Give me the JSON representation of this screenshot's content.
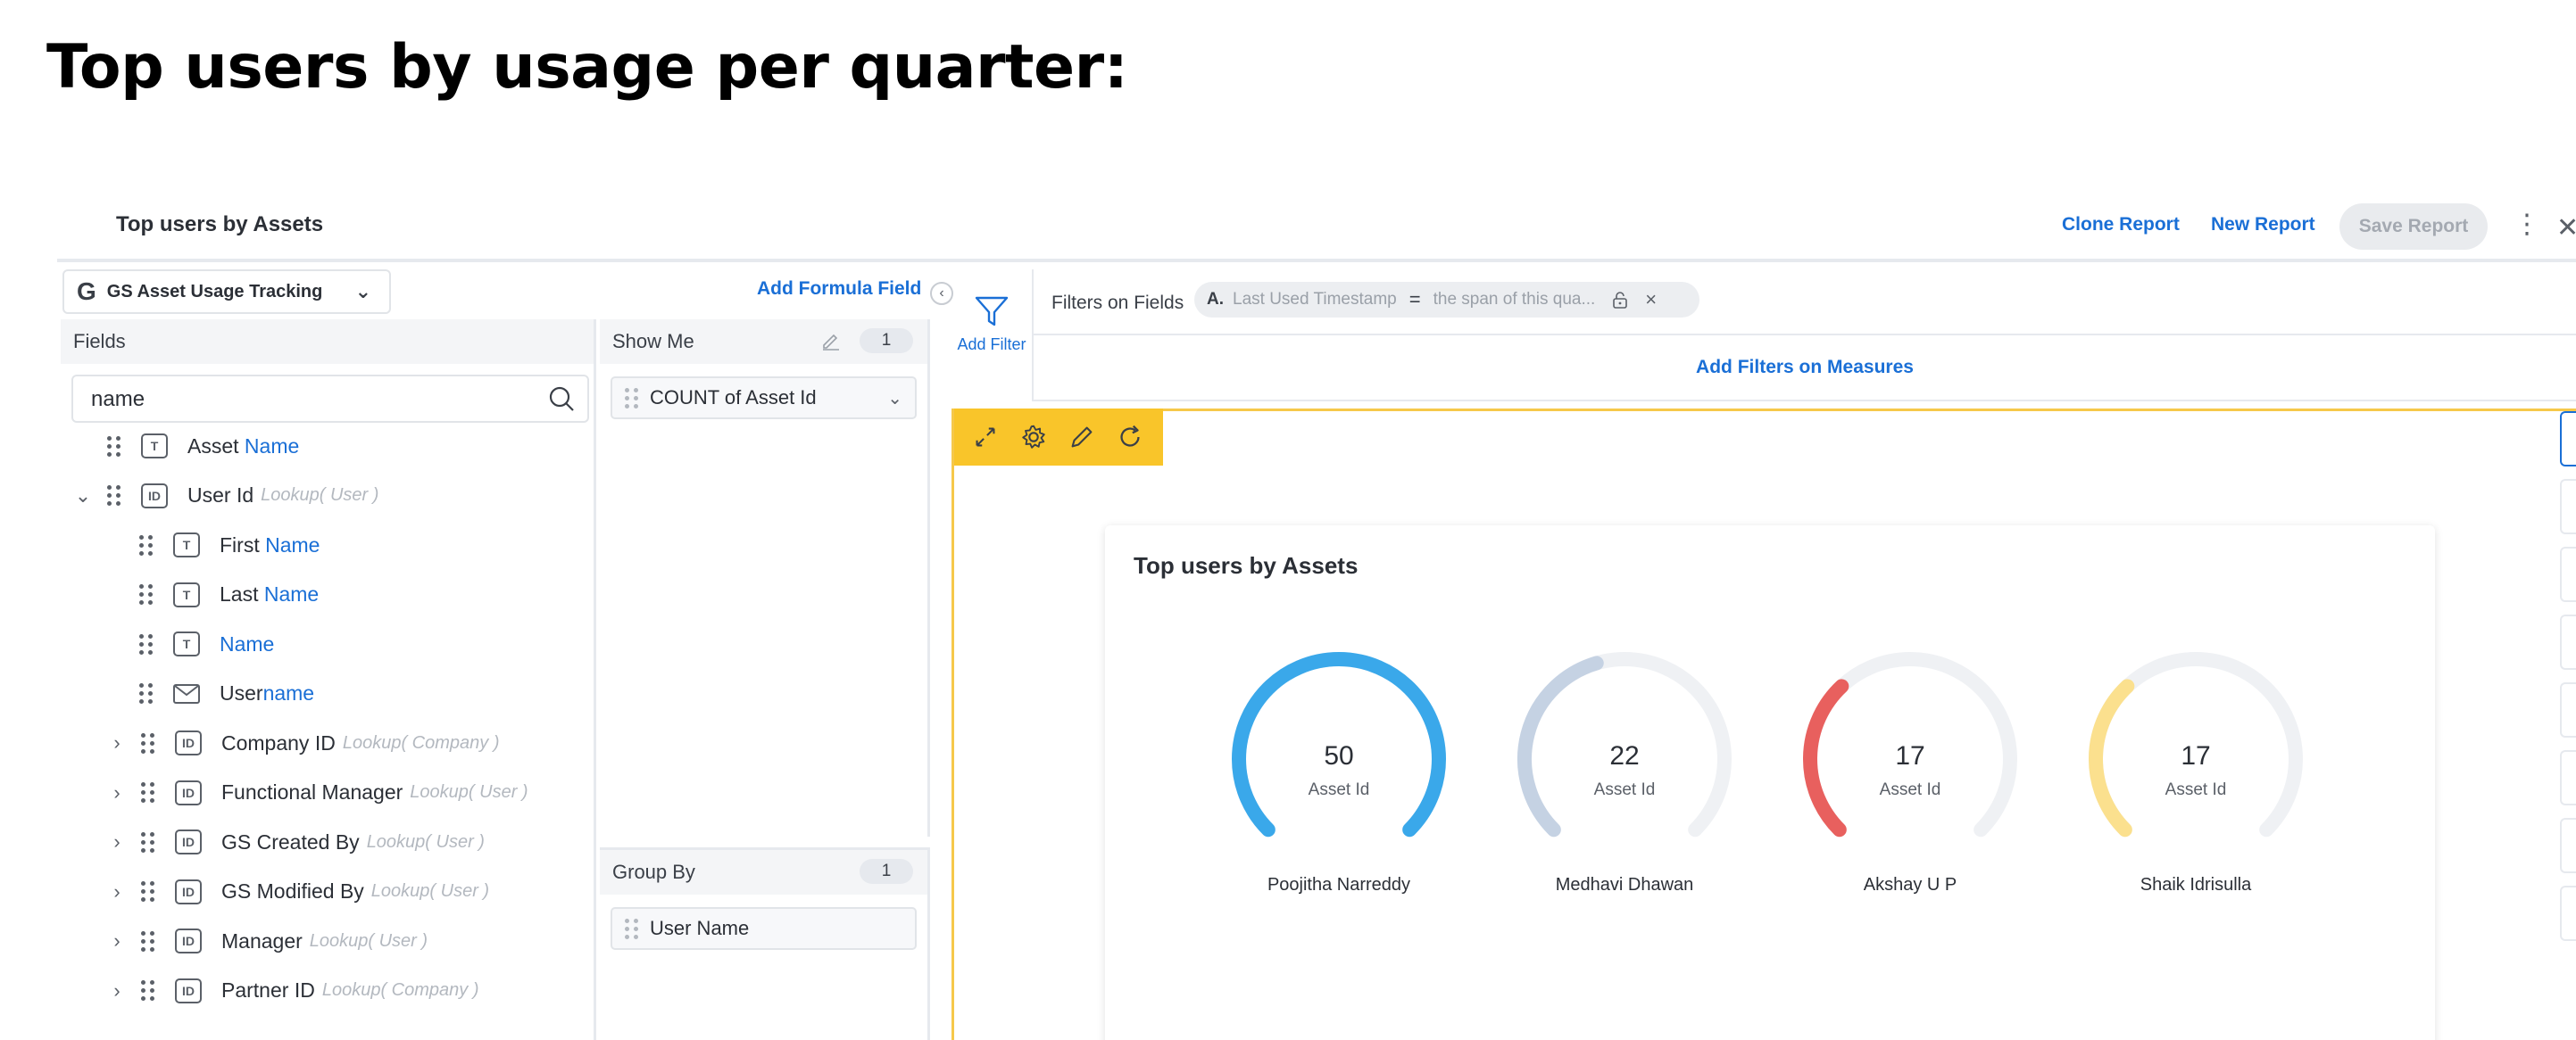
{
  "heading": "Top users by usage per quarter:",
  "topbar": {
    "title": "Top users by Assets",
    "clone_report": "Clone Report",
    "new_report": "New Report",
    "save_report": "Save Report",
    "more_icon": "kebab-icon",
    "close_icon": "close-icon"
  },
  "source": {
    "logo": "G",
    "name": "GS Asset Usage Tracking"
  },
  "add_formula_field": "Add Formula Field",
  "fields": {
    "header": "Fields",
    "search_value": "name",
    "items": [
      {
        "pre": "Asset ",
        "hl": "Name",
        "post": "",
        "lookup": "",
        "type": "T"
      },
      {
        "pre": "User Id",
        "hl": "",
        "post": "",
        "lookup": "Lookup( User )",
        "type": "ID"
      },
      {
        "pre": "First ",
        "hl": "Name",
        "post": "",
        "lookup": "",
        "type": "T"
      },
      {
        "pre": "Last ",
        "hl": "Name",
        "post": "",
        "lookup": "",
        "type": "T"
      },
      {
        "pre": "",
        "hl": "Name",
        "post": "",
        "lookup": "",
        "type": "T"
      },
      {
        "pre": "User",
        "hl": "name",
        "post": "",
        "lookup": "",
        "type": "mail"
      },
      {
        "pre": "Company ID",
        "hl": "",
        "post": "",
        "lookup": "Lookup( Company )",
        "type": "ID"
      },
      {
        "pre": "Functional Manager",
        "hl": "",
        "post": "",
        "lookup": "Lookup( User )",
        "type": "ID"
      },
      {
        "pre": "GS Created By",
        "hl": "",
        "post": "",
        "lookup": "Lookup( User )",
        "type": "ID"
      },
      {
        "pre": "GS Modified By",
        "hl": "",
        "post": "",
        "lookup": "Lookup( User )",
        "type": "ID"
      },
      {
        "pre": "Manager",
        "hl": "",
        "post": "",
        "lookup": "Lookup( User )",
        "type": "ID"
      },
      {
        "pre": "Partner ID",
        "hl": "",
        "post": "",
        "lookup": "Lookup( Company )",
        "type": "ID"
      }
    ]
  },
  "show_me": {
    "header": "Show Me",
    "count": "1",
    "measure": "COUNT of Asset Id"
  },
  "group_by": {
    "header": "Group By",
    "count": "1",
    "dimension": "User Name"
  },
  "filters": {
    "add_filter": "Add Filter",
    "label": "Filters on Fields",
    "chip_letter": "A.",
    "chip_field": "Last Used Timestamp",
    "chip_op": "=",
    "chip_value": "the span of this qua...",
    "add_on_measures": "Add Filters on Measures"
  },
  "chart_data": {
    "type": "gauge",
    "title": "Top users by Assets",
    "value_label": "Asset Id",
    "max": 50,
    "series": [
      {
        "name": "Poojitha Narreddy",
        "value": 50,
        "color": "#3aa8ea"
      },
      {
        "name": "Medhavi Dhawan",
        "value": 22,
        "color": "#c5d2e3"
      },
      {
        "name": "Akshay U P",
        "value": 17,
        "color": "#e8605e"
      },
      {
        "name": "Shaik Idrisulla",
        "value": 17,
        "color": "#fbe08e"
      }
    ]
  }
}
